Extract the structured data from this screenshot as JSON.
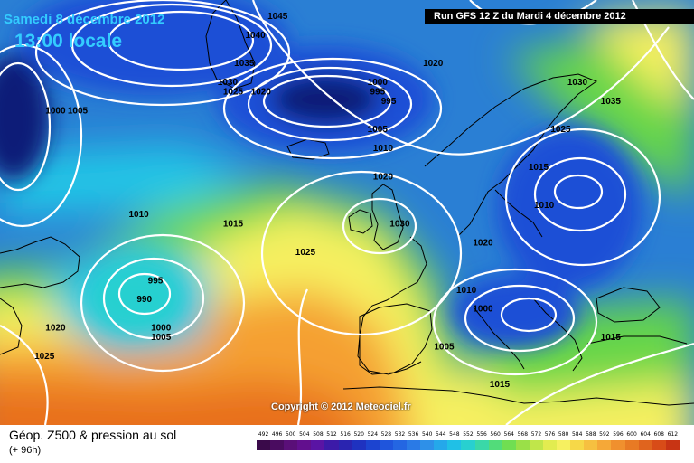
{
  "header": {
    "date": "Samedi 8 décembre 2012",
    "time": "13:00 locale",
    "run": "Run GFS 12 Z du Mardi 4 décembre 2012"
  },
  "copyright": "Copyright © 2012 Meteociel.fr",
  "footer": {
    "title": "Géop. Z500 & pression au sol",
    "subtitle": "(+ 96h)"
  },
  "colors": {
    "deep_low": "#0a1a78",
    "low": "#1f4fd6",
    "mid_blue": "#2a7fd4",
    "cyan": "#20c6e6",
    "green": "#66d64a",
    "yellow": "#f6f060",
    "orange": "#f5a030",
    "dark_orange": "#e8701e",
    "land_outline": "#000000",
    "isobar": "#ffffff"
  },
  "legend": {
    "labels": [
      "492",
      "496",
      "500",
      "504",
      "508",
      "512",
      "516",
      "520",
      "524",
      "528",
      "532",
      "536",
      "540",
      "544",
      "548",
      "552",
      "556",
      "560",
      "564",
      "568",
      "572",
      "576",
      "580",
      "584",
      "588",
      "592",
      "596",
      "600",
      "604",
      "608",
      "612"
    ],
    "colors": [
      "#3a0a4a",
      "#4a0c60",
      "#5a0f78",
      "#620f8e",
      "#5a14a4",
      "#3c1aa8",
      "#2a24b0",
      "#1f32c0",
      "#1c44d0",
      "#1f55dc",
      "#2466e2",
      "#2a7ae6",
      "#2e90e8",
      "#25a8ea",
      "#20c0e6",
      "#28d0d0",
      "#3ad8a8",
      "#52dc7a",
      "#70de52",
      "#9ae048",
      "#c0e64a",
      "#e2ec50",
      "#f6f060",
      "#f6d848",
      "#f6c040",
      "#f5a838",
      "#f0902e",
      "#e87a24",
      "#e0641e",
      "#d84c18",
      "#c83414"
    ]
  },
  "pressure_labels": [
    {
      "text": "1045",
      "lon": -30,
      "lat": 73
    },
    {
      "text": "1040",
      "lon": -34,
      "lat": 71
    },
    {
      "text": "1035",
      "lon": -36,
      "lat": 68
    },
    {
      "text": "1030",
      "lon": -39,
      "lat": 66
    },
    {
      "text": "1025",
      "lon": -38,
      "lat": 65
    },
    {
      "text": "1020",
      "lon": -33,
      "lat": 65
    },
    {
      "text": "1000",
      "lon": -12,
      "lat": 66
    },
    {
      "text": "995",
      "lon": -12,
      "lat": 65
    },
    {
      "text": "995",
      "lon": -10,
      "lat": 64
    },
    {
      "text": "1005",
      "lon": -12,
      "lat": 61
    },
    {
      "text": "1010",
      "lon": -11,
      "lat": 59
    },
    {
      "text": "1020",
      "lon": -11,
      "lat": 56
    },
    {
      "text": "1020",
      "lon": -2,
      "lat": 68
    },
    {
      "text": "1030",
      "lon": 24,
      "lat": 66
    },
    {
      "text": "1035",
      "lon": 30,
      "lat": 64
    },
    {
      "text": "1025",
      "lon": 21,
      "lat": 61
    },
    {
      "text": "1015",
      "lon": 17,
      "lat": 57
    },
    {
      "text": "1010",
      "lon": 18,
      "lat": 53
    },
    {
      "text": "1020",
      "lon": 7,
      "lat": 49
    },
    {
      "text": "1030",
      "lon": -8,
      "lat": 51
    },
    {
      "text": "1010",
      "lon": -55,
      "lat": 52
    },
    {
      "text": "1015",
      "lon": -38,
      "lat": 51
    },
    {
      "text": "1025",
      "lon": -25,
      "lat": 48
    },
    {
      "text": "995",
      "lon": -52,
      "lat": 45
    },
    {
      "text": "990",
      "lon": -54,
      "lat": 43
    },
    {
      "text": "1000",
      "lon": -51,
      "lat": 40
    },
    {
      "text": "1005",
      "lon": -51,
      "lat": 39
    },
    {
      "text": "1020",
      "lon": -70,
      "lat": 40
    },
    {
      "text": "1025",
      "lon": -72,
      "lat": 37
    },
    {
      "text": "1010",
      "lon": 4,
      "lat": 44
    },
    {
      "text": "1000",
      "lon": 7,
      "lat": 42
    },
    {
      "text": "1005",
      "lon": 0,
      "lat": 38
    },
    {
      "text": "1015",
      "lon": 30,
      "lat": 39
    },
    {
      "text": "1015",
      "lon": 10,
      "lat": 34
    },
    {
      "text": "1020",
      "lon": 8,
      "lat": 73
    },
    {
      "text": "1000",
      "lon": -70,
      "lat": 63
    },
    {
      "text": "1005",
      "lon": -66,
      "lat": 63
    }
  ]
}
